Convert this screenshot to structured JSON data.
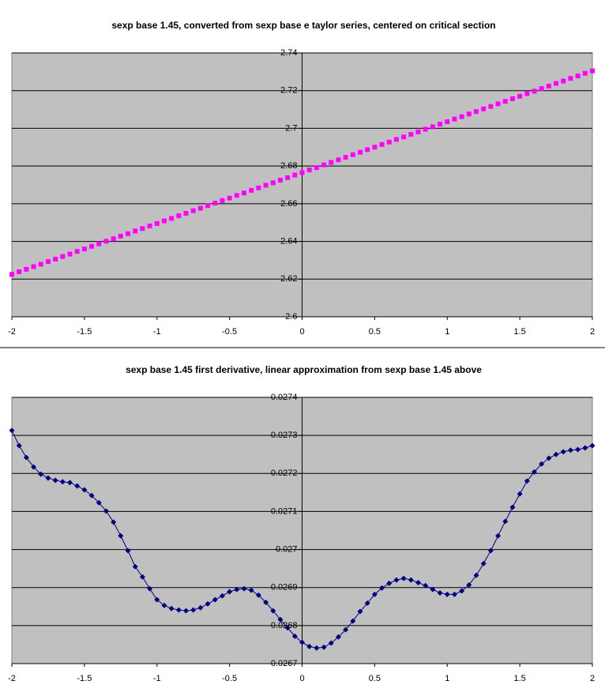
{
  "chart_data": [
    {
      "type": "scatter-line",
      "title": "sexp base 1.45, converted from sexp base e taylor series, centered on critical section",
      "color": "#ff00ff",
      "marker": "square",
      "line": false,
      "grid": true,
      "xlim": [
        -2,
        2
      ],
      "xticks": [
        -2,
        -1.5,
        -1,
        -0.5,
        0,
        0.5,
        1,
        1.5,
        2
      ],
      "ylim": [
        2.6,
        2.74
      ],
      "yticks": [
        2.6,
        2.62,
        2.64,
        2.66,
        2.68,
        2.7,
        2.72,
        2.74
      ],
      "x": [
        -2,
        -1.95,
        -1.9,
        -1.85,
        -1.8,
        -1.75,
        -1.7,
        -1.65,
        -1.6,
        -1.55,
        -1.5,
        -1.45,
        -1.4,
        -1.35,
        -1.3,
        -1.25,
        -1.2,
        -1.15,
        -1.1,
        -1.05,
        -1,
        -0.95,
        -0.9,
        -0.85,
        -0.8,
        -0.75,
        -0.7,
        -0.65,
        -0.6,
        -0.55,
        -0.5,
        -0.45,
        -0.4,
        -0.35,
        -0.3,
        -0.25,
        -0.2,
        -0.15,
        -0.1,
        -0.05,
        0,
        0.05,
        0.1,
        0.15,
        0.2,
        0.25,
        0.3,
        0.35,
        0.4,
        0.45,
        0.5,
        0.55,
        0.6,
        0.65,
        0.7,
        0.75,
        0.8,
        0.85,
        0.9,
        0.95,
        1,
        1.05,
        1.1,
        1.15,
        1.2,
        1.25,
        1.3,
        1.35,
        1.4,
        1.45,
        1.5,
        1.55,
        1.6,
        1.65,
        1.7,
        1.75,
        1.8,
        1.85,
        1.9,
        1.95,
        2
      ],
      "values": [
        2.6225,
        2.6239,
        2.6252,
        2.6266,
        2.6279,
        2.6293,
        2.6306,
        2.632,
        2.6333,
        2.6347,
        2.636,
        2.6374,
        2.6387,
        2.6401,
        2.6414,
        2.6428,
        2.6441,
        2.6455,
        2.6468,
        2.6482,
        2.6495,
        2.6509,
        2.6522,
        2.6536,
        2.6549,
        2.6563,
        2.6576,
        2.659,
        2.6603,
        2.6617,
        2.663,
        2.6644,
        2.6657,
        2.6671,
        2.6684,
        2.6698,
        2.6711,
        2.6725,
        2.6738,
        2.6752,
        2.6765,
        2.6779,
        2.6792,
        2.6806,
        2.6819,
        2.6833,
        2.6846,
        2.686,
        2.6873,
        2.6887,
        2.69,
        2.6914,
        2.6927,
        2.6941,
        2.6954,
        2.6968,
        2.6981,
        2.6995,
        2.7008,
        2.7022,
        2.7035,
        2.7049,
        2.7062,
        2.7076,
        2.7089,
        2.7103,
        2.7116,
        2.713,
        2.7143,
        2.7157,
        2.717,
        2.7184,
        2.7197,
        2.7211,
        2.7224,
        2.7238,
        2.7251,
        2.7265,
        2.7278,
        2.7292,
        2.7305
      ]
    },
    {
      "type": "scatter-line",
      "title": "sexp base 1.45 first derivative, linear approximation from sexp base 1.45 above",
      "color": "#000080",
      "marker": "diamond",
      "line": true,
      "grid": true,
      "xlim": [
        -2,
        2
      ],
      "xticks": [
        -2,
        -1.5,
        -1,
        -0.5,
        0,
        0.5,
        1,
        1.5,
        2
      ],
      "ylim": [
        0.0267,
        0.0274
      ],
      "yticks": [
        0.0267,
        0.0268,
        0.0269,
        0.027,
        0.0271,
        0.0272,
        0.0273,
        0.0274
      ],
      "x": [
        -2,
        -1.95,
        -1.9,
        -1.85,
        -1.8,
        -1.75,
        -1.7,
        -1.65,
        -1.6,
        -1.55,
        -1.5,
        -1.45,
        -1.4,
        -1.35,
        -1.3,
        -1.25,
        -1.2,
        -1.15,
        -1.1,
        -1.05,
        -1,
        -0.95,
        -0.9,
        -0.85,
        -0.8,
        -0.75,
        -0.7,
        -0.65,
        -0.6,
        -0.55,
        -0.5,
        -0.45,
        -0.4,
        -0.35,
        -0.3,
        -0.25,
        -0.2,
        -0.15,
        -0.1,
        -0.05,
        0,
        0.05,
        0.1,
        0.15,
        0.2,
        0.25,
        0.3,
        0.35,
        0.4,
        0.45,
        0.5,
        0.55,
        0.6,
        0.65,
        0.7,
        0.75,
        0.8,
        0.85,
        0.9,
        0.95,
        1,
        1.05,
        1.1,
        1.15,
        1.2,
        1.25,
        1.3,
        1.35,
        1.4,
        1.45,
        1.5,
        1.55,
        1.6,
        1.65,
        1.7,
        1.75,
        1.8,
        1.85,
        1.9,
        1.95,
        2
      ],
      "values": [
        0.027313,
        0.027273,
        0.027242,
        0.027217,
        0.027198,
        0.027188,
        0.027182,
        0.027178,
        0.027176,
        0.027167,
        0.027157,
        0.027142,
        0.027123,
        0.027101,
        0.027072,
        0.027036,
        0.026997,
        0.026955,
        0.026928,
        0.026897,
        0.026868,
        0.026853,
        0.026845,
        0.026841,
        0.026839,
        0.026841,
        0.026847,
        0.026857,
        0.026868,
        0.026878,
        0.026889,
        0.026895,
        0.026897,
        0.026893,
        0.02688,
        0.026861,
        0.026839,
        0.026816,
        0.026794,
        0.026772,
        0.026756,
        0.026745,
        0.026741,
        0.026743,
        0.026754,
        0.02677,
        0.026789,
        0.026812,
        0.026837,
        0.026859,
        0.026882,
        0.026899,
        0.026911,
        0.02692,
        0.026924,
        0.02692,
        0.026913,
        0.026905,
        0.026895,
        0.026886,
        0.026882,
        0.026882,
        0.026891,
        0.026907,
        0.026932,
        0.026963,
        0.026997,
        0.027036,
        0.027074,
        0.027111,
        0.027146,
        0.02718,
        0.027204,
        0.027225,
        0.02724,
        0.02725,
        0.027257,
        0.027261,
        0.027263,
        0.027267,
        0.027273
      ]
    }
  ]
}
